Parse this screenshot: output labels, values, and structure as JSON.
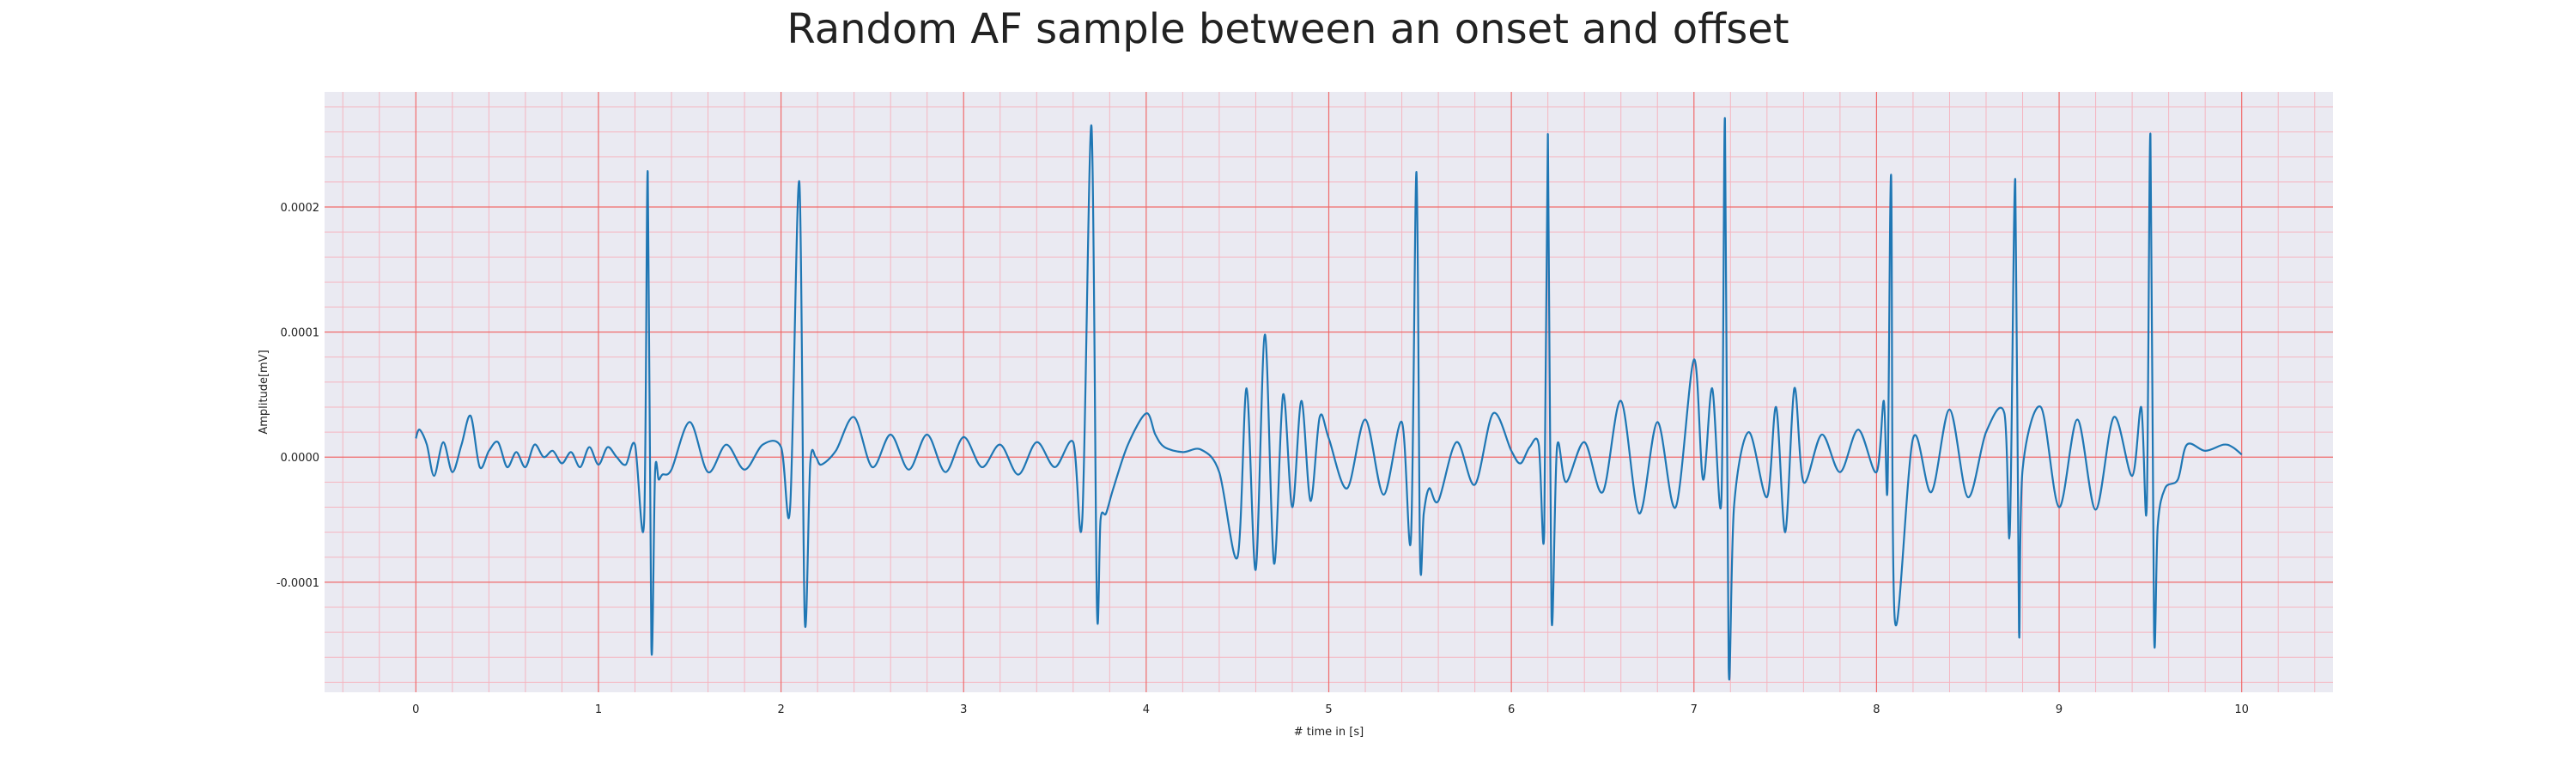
{
  "chart_data": {
    "type": "line",
    "title": "Random AF sample between an onset and offset",
    "xlabel": "# time in [s]",
    "ylabel": "Amplitude[mV]",
    "xlim": [
      -0.5,
      10.5
    ],
    "ylim": [
      -0.000188,
      0.000292
    ],
    "x_ticks": [
      0,
      1,
      2,
      3,
      4,
      5,
      6,
      7,
      8,
      9,
      10
    ],
    "x_tick_labels": [
      "0",
      "1",
      "2",
      "3",
      "4",
      "5",
      "6",
      "7",
      "8",
      "9",
      "10"
    ],
    "y_ticks": [
      -0.0001,
      0.0,
      0.0001,
      0.0002
    ],
    "y_tick_labels": [
      "-0.0001",
      "0.0000",
      "0.0001",
      "0.0002"
    ],
    "grid": true,
    "series": [
      {
        "color": "#1f77b4",
        "x": [
          0,
          0.02,
          0.06,
          0.1,
          0.15,
          0.2,
          0.25,
          0.3,
          0.35,
          0.4,
          0.45,
          0.5,
          0.55,
          0.6,
          0.65,
          0.7,
          0.75,
          0.8,
          0.85,
          0.9,
          0.95,
          1.0,
          1.05,
          1.1,
          1.15,
          1.2,
          1.25,
          1.27,
          1.29,
          1.31,
          1.33,
          1.35,
          1.4,
          1.5,
          1.6,
          1.7,
          1.8,
          1.9,
          2.0,
          2.05,
          2.1,
          2.13,
          2.16,
          2.19,
          2.22,
          2.3,
          2.4,
          2.5,
          2.6,
          2.7,
          2.8,
          2.9,
          3.0,
          3.1,
          3.2,
          3.3,
          3.4,
          3.5,
          3.6,
          3.65,
          3.7,
          3.73,
          3.75,
          3.78,
          3.82,
          3.9,
          4.0,
          4.05,
          4.1,
          4.2,
          4.3,
          4.4,
          4.5,
          4.55,
          4.6,
          4.65,
          4.7,
          4.75,
          4.8,
          4.85,
          4.9,
          4.95,
          5.0,
          5.1,
          5.2,
          5.3,
          5.4,
          5.45,
          5.48,
          5.5,
          5.52,
          5.55,
          5.6,
          5.7,
          5.8,
          5.9,
          6.0,
          6.05,
          6.1,
          6.15,
          6.18,
          6.2,
          6.22,
          6.25,
          6.3,
          6.4,
          6.5,
          6.6,
          6.7,
          6.8,
          6.9,
          7.0,
          7.05,
          7.1,
          7.15,
          7.17,
          7.19,
          7.22,
          7.3,
          7.4,
          7.45,
          7.5,
          7.55,
          7.6,
          7.7,
          7.8,
          7.9,
          8.0,
          8.04,
          8.06,
          8.08,
          8.1,
          8.2,
          8.3,
          8.4,
          8.5,
          8.6,
          8.7,
          8.73,
          8.76,
          8.78,
          8.8,
          8.9,
          9.0,
          9.1,
          9.2,
          9.3,
          9.4,
          9.45,
          9.48,
          9.5,
          9.52,
          9.54,
          9.58,
          9.65,
          9.7,
          9.8,
          9.9,
          9.95,
          10.0
        ],
        "y": [
          1.5e-05,
          2.2e-05,
          1e-05,
          -1.5e-05,
          1.2e-05,
          -1.2e-05,
          1e-05,
          3.3e-05,
          -8e-06,
          5e-06,
          1.2e-05,
          -8e-06,
          4e-06,
          -8e-06,
          1e-05,
          0.0,
          5e-06,
          -5e-06,
          4e-06,
          -8e-06,
          8e-06,
          -6e-06,
          8e-06,
          0.0,
          -6e-06,
          1e-05,
          -5.2e-05,
          0.000228,
          -0.000152,
          -1.2e-05,
          -1.8e-05,
          -1.4e-05,
          -1e-05,
          2.8e-05,
          -1.2e-05,
          1e-05,
          -1e-05,
          1e-05,
          8e-06,
          -4e-05,
          0.00022,
          -0.00013,
          -5e-06,
          0.0,
          -6e-06,
          5e-06,
          3.2e-05,
          -8e-06,
          1.8e-05,
          -1e-05,
          1.8e-05,
          -1.2e-05,
          1.6e-05,
          -8e-06,
          1e-05,
          -1.4e-05,
          1.2e-05,
          -8e-06,
          1.2e-05,
          -5e-05,
          0.000265,
          -0.00012,
          -5e-05,
          -4.5e-05,
          -2.5e-05,
          1e-05,
          3.5e-05,
          1.8e-05,
          8e-06,
          4e-06,
          6e-06,
          -1.2e-05,
          -8e-05,
          5.5e-05,
          -9e-05,
          9.8e-05,
          -8.5e-05,
          5e-05,
          -4e-05,
          4.5e-05,
          -3.5e-05,
          3.2e-05,
          1.5e-05,
          -2.5e-05,
          3e-05,
          -3e-05,
          2.8e-05,
          -6.5e-05,
          0.000228,
          -8e-05,
          -4.5e-05,
          -2.5e-05,
          -3.5e-05,
          1.2e-05,
          -2.2e-05,
          3.5e-05,
          5e-06,
          -5e-06,
          8e-06,
          1e-05,
          -6e-05,
          0.000258,
          -0.000128,
          8e-06,
          -2e-05,
          1.2e-05,
          -2.8e-05,
          4.5e-05,
          -4.5e-05,
          2.8e-05,
          -4e-05,
          7.8e-05,
          -1.8e-05,
          5.5e-05,
          -3.5e-05,
          0.00027,
          -0.000168,
          -3.8e-05,
          2e-05,
          -3.2e-05,
          4e-05,
          -6e-05,
          5.5e-05,
          -2e-05,
          1.8e-05,
          -1.2e-05,
          2.2e-05,
          -1.2e-05,
          4.5e-05,
          -2.5e-05,
          0.000225,
          -0.00013,
          1.5e-05,
          -2.8e-05,
          3.8e-05,
          -3.2e-05,
          2e-05,
          3.5e-05,
          -6e-05,
          0.000222,
          -0.000138,
          -1e-05,
          4e-05,
          -4e-05,
          3e-05,
          -4.2e-05,
          3.2e-05,
          -1.5e-05,
          4e-05,
          -4e-05,
          0.000258,
          -0.00014,
          -5.5e-05,
          -2.5e-05,
          -1.8e-05,
          1e-05,
          5e-06,
          1e-05,
          8e-06,
          2e-06
        ]
      }
    ]
  }
}
